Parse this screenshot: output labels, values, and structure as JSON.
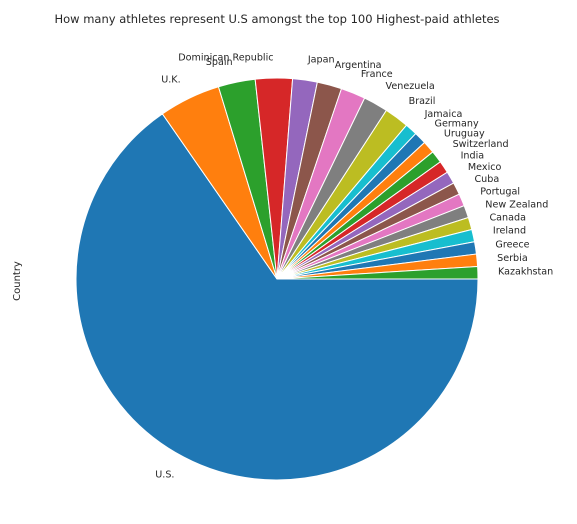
{
  "chart_data": {
    "type": "pie",
    "title": "How many athletes represent U.S amongst the top 100 Highest-paid athletes",
    "ylabel": "Country",
    "start_angle_deg": 0,
    "direction": "clockwise",
    "slices": [
      {
        "label": "U.S.",
        "value": 66,
        "color": "#1f77b4"
      },
      {
        "label": "U.K.",
        "value": 5,
        "color": "#ff7f0e"
      },
      {
        "label": "Spain",
        "value": 3,
        "color": "#2ca02c"
      },
      {
        "label": "Dominican Republic",
        "value": 3,
        "color": "#d62728"
      },
      {
        "label": "Japan",
        "value": 2,
        "color": "#9467bd"
      },
      {
        "label": "Argentina",
        "value": 2,
        "color": "#8c564b"
      },
      {
        "label": "France",
        "value": 2,
        "color": "#e377c2"
      },
      {
        "label": "Venezuela",
        "value": 2,
        "color": "#7f7f7f"
      },
      {
        "label": "Brazil",
        "value": 2,
        "color": "#bcbd22"
      },
      {
        "label": "Jamaica",
        "value": 1,
        "color": "#17becf"
      },
      {
        "label": "Germany",
        "value": 1,
        "color": "#1f77b4"
      },
      {
        "label": "Uruguay",
        "value": 1,
        "color": "#ff7f0e"
      },
      {
        "label": "Switzerland",
        "value": 1,
        "color": "#2ca02c"
      },
      {
        "label": "India",
        "value": 1,
        "color": "#d62728"
      },
      {
        "label": "Mexico",
        "value": 1,
        "color": "#9467bd"
      },
      {
        "label": "Cuba",
        "value": 1,
        "color": "#8c564b"
      },
      {
        "label": "Portugal",
        "value": 1,
        "color": "#e377c2"
      },
      {
        "label": "New Zealand",
        "value": 1,
        "color": "#7f7f7f"
      },
      {
        "label": "Canada",
        "value": 1,
        "color": "#bcbd22"
      },
      {
        "label": "Ireland",
        "value": 1,
        "color": "#17becf"
      },
      {
        "label": "Greece",
        "value": 1,
        "color": "#1f77b4"
      },
      {
        "label": "Serbia",
        "value": 1,
        "color": "#ff7f0e"
      },
      {
        "label": "Kazakhstan",
        "value": 1,
        "color": "#2ca02c"
      }
    ]
  }
}
